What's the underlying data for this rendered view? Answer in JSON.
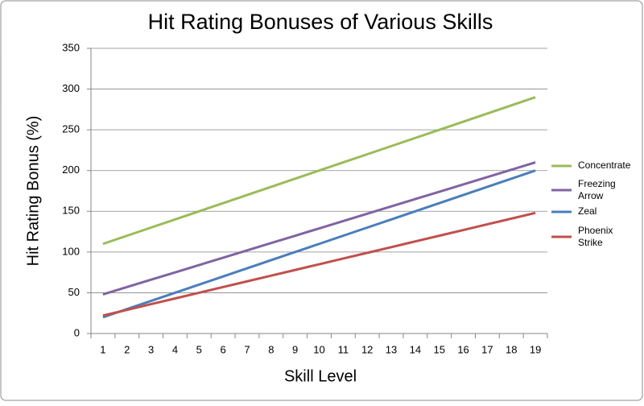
{
  "chart_data": {
    "type": "line",
    "title": "Hit Rating Bonuses of Various Skills",
    "x_label": "Skill Level",
    "y_label": "Hit Rating Bonus (%)",
    "categories": [
      "1",
      "2",
      "3",
      "4",
      "5",
      "6",
      "7",
      "8",
      "9",
      "10",
      "11",
      "12",
      "13",
      "14",
      "15",
      "16",
      "17",
      "18",
      "19"
    ],
    "series": [
      {
        "name": "Concentrate",
        "color": "#9bbb59",
        "values": [
          110,
          120,
          130,
          140,
          150,
          160,
          170,
          180,
          190,
          200,
          210,
          220,
          230,
          240,
          250,
          260,
          270,
          280,
          290
        ]
      },
      {
        "name": "Freezing Arrow",
        "color": "#8064a2",
        "values": [
          48,
          57,
          66,
          75,
          84,
          93,
          102,
          111,
          120,
          129,
          138,
          147,
          156,
          165,
          174,
          183,
          192,
          201,
          210
        ]
      },
      {
        "name": "Zeal",
        "color": "#4a7ebb",
        "values": [
          20,
          30,
          40,
          50,
          60,
          70,
          80,
          90,
          100,
          110,
          120,
          130,
          140,
          150,
          160,
          170,
          180,
          190,
          200
        ]
      },
      {
        "name": "Phoenix Strike",
        "color": "#c0504d",
        "values": [
          22,
          29,
          36,
          43,
          50,
          57,
          64,
          71,
          78,
          85,
          92,
          99,
          106,
          113,
          120,
          127,
          134,
          141,
          148
        ]
      }
    ],
    "ylim": [
      0,
      350
    ],
    "yticks": [
      0,
      50,
      100,
      150,
      200,
      250,
      300,
      350
    ],
    "grid": true,
    "legend": "right"
  }
}
